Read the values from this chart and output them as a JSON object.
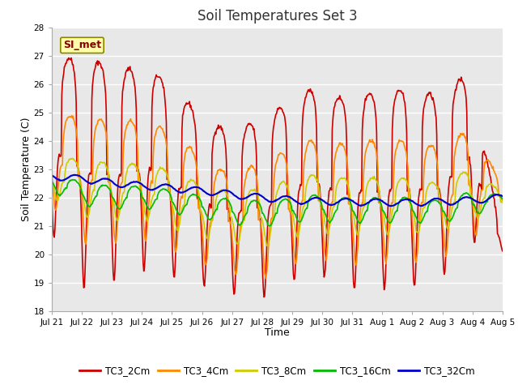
{
  "title": "Soil Temperatures Set 3",
  "xlabel": "Time",
  "ylabel": "Soil Temperature (C)",
  "ylim": [
    18.0,
    28.0
  ],
  "yticks": [
    18.0,
    19.0,
    20.0,
    21.0,
    22.0,
    23.0,
    24.0,
    25.0,
    26.0,
    27.0,
    28.0
  ],
  "xtick_labels": [
    "Jul 21",
    "Jul 22",
    "Jul 23",
    "Jul 24",
    "Jul 25",
    "Jul 26",
    "Jul 27",
    "Jul 28",
    "Jul 29",
    "Jul 30",
    "Jul 31",
    "Aug 1",
    "Aug 2",
    "Aug 3",
    "Aug 4",
    "Aug 5"
  ],
  "bg_color": "#e8e8e8",
  "fig_color": "#ffffff",
  "series": {
    "TC3_2Cm": {
      "color": "#cc0000",
      "lw": 1.2
    },
    "TC3_4Cm": {
      "color": "#ff8800",
      "lw": 1.2
    },
    "TC3_8Cm": {
      "color": "#cccc00",
      "lw": 1.2
    },
    "TC3_16Cm": {
      "color": "#00bb00",
      "lw": 1.2
    },
    "TC3_32Cm": {
      "color": "#0000cc",
      "lw": 1.5
    }
  },
  "annotation_text": "SI_met",
  "annotation_color": "#880000",
  "annotation_bg": "#ffffaa",
  "annotation_edge": "#888800"
}
